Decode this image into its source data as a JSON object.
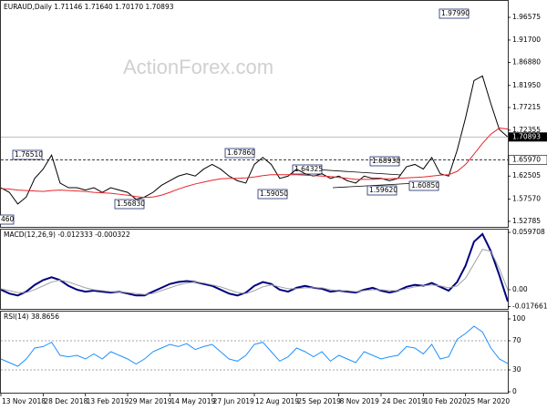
{
  "chart_data": [
    {
      "type": "line",
      "title": "EURAUD,Daily 1.71146 1.71640 1.70170 1.70893",
      "watermark": "ActionForex.com",
      "x": [
        0,
        1,
        2,
        3,
        4,
        5,
        6,
        7,
        8,
        9,
        10,
        11,
        12,
        13,
        14,
        15,
        16,
        17,
        18,
        19,
        20,
        21,
        22,
        23,
        24,
        25,
        26,
        27,
        28,
        29,
        30,
        31,
        32,
        33,
        34,
        35,
        36,
        37,
        38,
        39,
        40,
        41,
        42,
        43,
        44,
        45,
        46,
        47,
        48,
        49,
        50,
        51,
        52,
        53,
        54,
        55,
        56,
        57,
        58,
        59,
        60
      ],
      "xlim": [
        0,
        60
      ],
      "ylim": [
        1.514,
        2.001
      ],
      "yticks": [
        1.52785,
        {
          "value": 1.5757,
          "label": "1.57570"
        },
        1.62505,
        1.72355,
        1.77215,
        {
          "value": 1.8195,
          "label": "1.81950"
        },
        {
          "value": 1.8688,
          "label": "1.86880"
        },
        {
          "value": 1.917,
          "label": "1.91700"
        },
        1.96575
      ],
      "series": [
        {
          "color": "#000000",
          "values": [
            1.6,
            1.59,
            1.565,
            1.58,
            1.62,
            1.64,
            1.67,
            1.61,
            1.6,
            1.6,
            1.595,
            1.6,
            1.59,
            1.6,
            1.595,
            1.59,
            1.575,
            1.58,
            1.59,
            1.605,
            1.615,
            1.625,
            1.63,
            1.625,
            1.64,
            1.65,
            1.64,
            1.625,
            1.615,
            1.61,
            1.65,
            1.665,
            1.65,
            1.62,
            1.625,
            1.64,
            1.63,
            1.625,
            1.63,
            1.62,
            1.625,
            1.615,
            1.61,
            1.625,
            1.62,
            1.62,
            1.615,
            1.62,
            1.645,
            1.65,
            1.64,
            1.665,
            1.63,
            1.625,
            1.68,
            1.75,
            1.83,
            1.84,
            1.78,
            1.725,
            1.70893
          ]
        },
        {
          "color": "#e8262b",
          "values": [
            1.598,
            1.597,
            1.595,
            1.594,
            1.593,
            1.592,
            1.594,
            1.595,
            1.594,
            1.593,
            1.592,
            1.59,
            1.589,
            1.588,
            1.586,
            1.584,
            1.581,
            1.579,
            1.58,
            1.584,
            1.59,
            1.597,
            1.603,
            1.608,
            1.612,
            1.616,
            1.619,
            1.62,
            1.62,
            1.621,
            1.623,
            1.626,
            1.628,
            1.628,
            1.628,
            1.628,
            1.627,
            1.626,
            1.625,
            1.624,
            1.622,
            1.62,
            1.618,
            1.618,
            1.618,
            1.619,
            1.619,
            1.62,
            1.621,
            1.622,
            1.623,
            1.625,
            1.627,
            1.628,
            1.635,
            1.65,
            1.672,
            1.695,
            1.715,
            1.728,
            1.726
          ]
        }
      ],
      "last_price": 1.70893,
      "hline": {
        "value": 1.6597,
        "label": "1.65970"
      },
      "annotations": [
        "1.76510",
        "1.67860",
        "1.64325",
        "1.68930",
        "1.97990",
        "1.59050",
        "1.56830",
        "1.59620",
        "1.60850",
        "460"
      ]
    },
    {
      "type": "line",
      "title": "MACD(12,26,9) -0.012333 -0.000322",
      "x": [
        0,
        1,
        2,
        3,
        4,
        5,
        6,
        7,
        8,
        9,
        10,
        11,
        12,
        13,
        14,
        15,
        16,
        17,
        18,
        19,
        20,
        21,
        22,
        23,
        24,
        25,
        26,
        27,
        28,
        29,
        30,
        31,
        32,
        33,
        34,
        35,
        36,
        37,
        38,
        39,
        40,
        41,
        42,
        43,
        44,
        45,
        46,
        47,
        48,
        49,
        50,
        51,
        52,
        53,
        54,
        55,
        56,
        57,
        58,
        59,
        60
      ],
      "xlim": [
        0,
        60
      ],
      "ylim": [
        -0.0209,
        0.0626
      ],
      "yticks": [
        -0.017661,
        {
          "value": 0,
          "label": "0.00"
        },
        0.059708
      ],
      "series": [
        {
          "color": "#000080",
          "values": [
            0.0,
            -0.004,
            -0.006,
            -0.002,
            0.005,
            0.01,
            0.013,
            0.01,
            0.004,
            0.0,
            -0.002,
            -0.001,
            -0.002,
            -0.003,
            -0.002,
            -0.004,
            -0.006,
            -0.006,
            -0.002,
            0.002,
            0.006,
            0.008,
            0.009,
            0.008,
            0.006,
            0.004,
            0.0,
            -0.004,
            -0.006,
            -0.003,
            0.004,
            0.008,
            0.006,
            0.0,
            -0.002,
            0.002,
            0.004,
            0.002,
            0.001,
            -0.002,
            -0.001,
            -0.002,
            -0.003,
            0.0,
            0.002,
            -0.001,
            -0.003,
            -0.001,
            0.003,
            0.005,
            0.004,
            0.007,
            0.003,
            -0.001,
            0.008,
            0.025,
            0.05,
            0.058,
            0.04,
            0.015,
            -0.012333
          ]
        },
        {
          "color": "#a0a0a0",
          "values": [
            0.001,
            -0.001,
            -0.003,
            -0.003,
            0.0,
            0.004,
            0.008,
            0.01,
            0.008,
            0.005,
            0.002,
            0.0,
            -0.001,
            -0.002,
            -0.002,
            -0.003,
            -0.004,
            -0.005,
            -0.004,
            -0.001,
            0.002,
            0.005,
            0.007,
            0.008,
            0.007,
            0.005,
            0.003,
            0.0,
            -0.003,
            -0.004,
            -0.001,
            0.003,
            0.005,
            0.003,
            0.001,
            0.001,
            0.002,
            0.002,
            0.002,
            0.0,
            -0.001,
            -0.001,
            -0.002,
            -0.001,
            0.0,
            0.0,
            -0.001,
            -0.001,
            0.001,
            0.003,
            0.004,
            0.005,
            0.004,
            0.002,
            0.004,
            0.012,
            0.027,
            0.042,
            0.04,
            0.022,
            -0.000322
          ]
        }
      ]
    },
    {
      "type": "line",
      "title": "RSI(14) 38.8656",
      "x": [
        0,
        1,
        2,
        3,
        4,
        5,
        6,
        7,
        8,
        9,
        10,
        11,
        12,
        13,
        14,
        15,
        16,
        17,
        18,
        19,
        20,
        21,
        22,
        23,
        24,
        25,
        26,
        27,
        28,
        29,
        30,
        31,
        32,
        33,
        34,
        35,
        36,
        37,
        38,
        39,
        40,
        41,
        42,
        43,
        44,
        45,
        46,
        47,
        48,
        49,
        50,
        51,
        52,
        53,
        54,
        55,
        56,
        57,
        58,
        59,
        60
      ],
      "xlim": [
        0,
        60
      ],
      "ylim": [
        -2.5,
        110
      ],
      "yticks": [
        0,
        30,
        70,
        100
      ],
      "levels": [
        30,
        70
      ],
      "xticks": [
        {
          "value": 0,
          "label": "13 Nov 2018"
        },
        {
          "value": 5,
          "label": "28 Dec 2018"
        },
        {
          "value": 10,
          "label": "13 Feb 2019"
        },
        {
          "value": 15,
          "label": "29 Mar 2019"
        },
        {
          "value": 20,
          "label": "14 May 2019"
        },
        {
          "value": 25,
          "label": "27 Jun 2019"
        },
        {
          "value": 30,
          "label": "12 Aug 2019"
        },
        {
          "value": 35,
          "label": "25 Sep 2019"
        },
        {
          "value": 40,
          "label": "8 Nov 2019"
        },
        {
          "value": 45,
          "label": "24 Dec 2019"
        },
        {
          "value": 50,
          "label": "10 Feb 2020"
        },
        {
          "value": 55,
          "label": "25 Mar 2020"
        }
      ],
      "series": [
        {
          "color": "#1e90ff",
          "values": [
            45,
            40,
            35,
            45,
            60,
            62,
            68,
            50,
            48,
            50,
            45,
            52,
            45,
            55,
            50,
            45,
            38,
            45,
            55,
            60,
            65,
            62,
            66,
            58,
            62,
            65,
            55,
            45,
            42,
            50,
            65,
            68,
            55,
            42,
            48,
            60,
            55,
            48,
            55,
            42,
            50,
            45,
            40,
            55,
            50,
            45,
            48,
            50,
            62,
            60,
            52,
            65,
            45,
            48,
            72,
            80,
            90,
            82,
            60,
            45,
            38.8656
          ]
        }
      ]
    }
  ]
}
